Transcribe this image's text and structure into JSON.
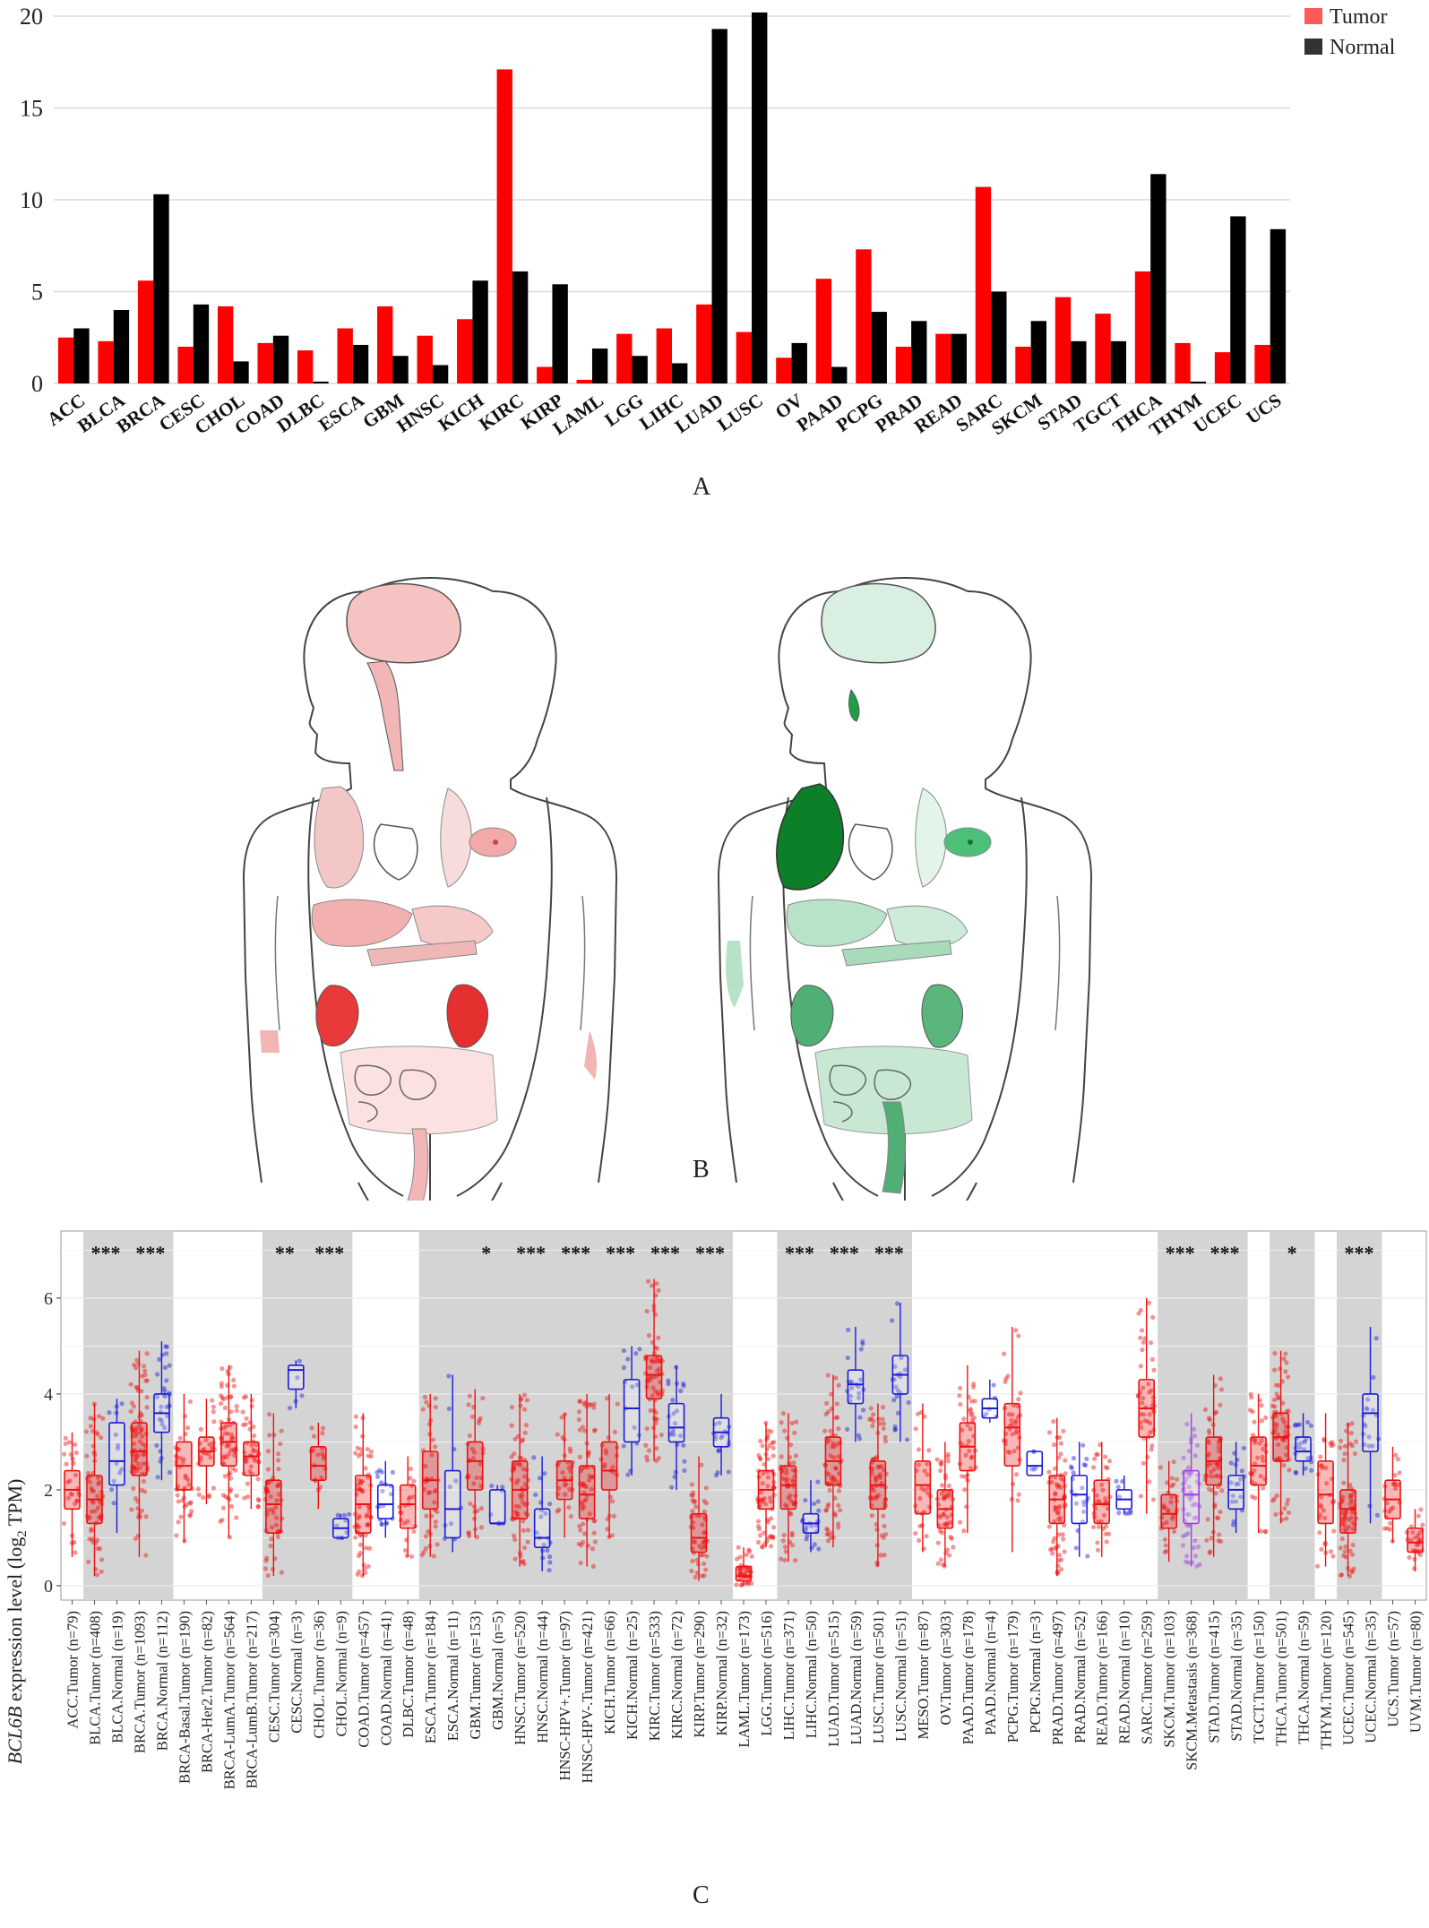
{
  "panel_labels": {
    "a": "A",
    "b": "B",
    "c": "C"
  },
  "colors": {
    "tumor": "#ff0000",
    "normal": "#000000",
    "tumor_box": "#ee1111",
    "normal_box": "#1a1adb",
    "metastasis_box": "#a040e0"
  },
  "chart_data": [
    {
      "type": "bar",
      "legend": {
        "position": "top-right",
        "entries": [
          "Tumor",
          "Normal"
        ]
      },
      "ylim": [
        0,
        20
      ],
      "yticks": [
        "0",
        "5",
        "10",
        "15",
        "20"
      ],
      "grid": true,
      "categories": [
        "ACC",
        "BLCA",
        "BRCA",
        "CESC",
        "CHOL",
        "COAD",
        "DLBC",
        "ESCA",
        "GBM",
        "HNSC",
        "KICH",
        "KIRC",
        "KIRP",
        "LAML",
        "LGG",
        "LIHC",
        "LUAD",
        "LUSC",
        "OV",
        "PAAD",
        "PCPG",
        "PRAD",
        "READ",
        "SARC",
        "SKCM",
        "STAD",
        "TGCT",
        "THCA",
        "THYM",
        "UCEC",
        "UCS"
      ],
      "series": [
        {
          "name": "Tumor",
          "values": [
            2.5,
            2.3,
            5.6,
            2.0,
            4.2,
            2.2,
            1.8,
            3.0,
            4.2,
            2.6,
            3.5,
            17.1,
            0.9,
            0.2,
            2.7,
            3.0,
            4.3,
            2.8,
            1.4,
            5.7,
            7.3,
            2.0,
            2.7,
            10.7,
            2.0,
            4.7,
            3.8,
            6.1,
            2.2,
            1.7,
            2.1
          ]
        },
        {
          "name": "Normal",
          "values": [
            3.0,
            4.0,
            10.3,
            4.3,
            1.2,
            2.6,
            0.1,
            2.1,
            1.5,
            1.0,
            5.6,
            6.1,
            5.4,
            1.9,
            1.5,
            1.1,
            19.3,
            20.2,
            2.2,
            0.9,
            3.9,
            3.4,
            2.7,
            5.0,
            3.4,
            2.3,
            2.3,
            11.4,
            0.1,
            9.1,
            8.4
          ]
        }
      ]
    },
    {
      "type": "box",
      "ylabel_gene": "BCL6B",
      "ylabel_rest": " expression level (log",
      "ylabel_sub": "2",
      "ylabel_end": " TPM)",
      "ylim": [
        -0.3,
        7.4
      ],
      "yticks": [
        "0",
        "2",
        "4",
        "6"
      ],
      "grid": true,
      "groups": [
        {
          "label": "ACC.Tumor (n=79)",
          "kind": "tumor",
          "q": [
            0.6,
            1.6,
            2.0,
            2.4,
            3.2
          ],
          "sig": "",
          "shade": false
        },
        {
          "label": "BLCA.Tumor (n=408)",
          "kind": "tumor",
          "q": [
            0.2,
            1.3,
            1.8,
            2.3,
            3.8
          ],
          "sig": "***",
          "shade": true
        },
        {
          "label": "BLCA.Normal (n=19)",
          "kind": "normal",
          "q": [
            1.1,
            2.1,
            2.6,
            3.4,
            3.9
          ],
          "sig": "",
          "shade": true
        },
        {
          "label": "BRCA.Tumor (n=1093)",
          "kind": "tumor",
          "q": [
            0.6,
            2.3,
            2.8,
            3.4,
            4.9
          ],
          "sig": "***",
          "shade": true
        },
        {
          "label": "BRCA.Normal (n=112)",
          "kind": "normal",
          "q": [
            2.2,
            3.2,
            3.6,
            4.0,
            5.1
          ],
          "sig": "",
          "shade": true
        },
        {
          "label": "BRCA-Basal.Tumor (n=190)",
          "kind": "tumor",
          "q": [
            0.9,
            2.0,
            2.5,
            3.0,
            4.0
          ],
          "sig": "",
          "shade": false
        },
        {
          "label": "BRCA-Her2.Tumor (n=82)",
          "kind": "tumor",
          "q": [
            1.7,
            2.5,
            2.8,
            3.1,
            3.9
          ],
          "sig": "",
          "shade": false
        },
        {
          "label": "BRCA-LumA.Tumor (n=564)",
          "kind": "tumor",
          "q": [
            1.0,
            2.5,
            3.0,
            3.4,
            4.6
          ],
          "sig": "",
          "shade": false
        },
        {
          "label": "BRCA-LumB.Tumor (n=217)",
          "kind": "tumor",
          "q": [
            1.6,
            2.3,
            2.7,
            3.0,
            4.0
          ],
          "sig": "",
          "shade": false
        },
        {
          "label": "CESC.Tumor (n=304)",
          "kind": "tumor",
          "q": [
            0.2,
            1.1,
            1.7,
            2.2,
            3.6
          ],
          "sig": "**",
          "shade": true
        },
        {
          "label": "CESC.Normal (n=3)",
          "kind": "normal",
          "q": [
            3.7,
            4.1,
            4.5,
            4.6,
            4.7
          ],
          "sig": "",
          "shade": true
        },
        {
          "label": "CHOL.Tumor (n=36)",
          "kind": "tumor",
          "q": [
            1.6,
            2.2,
            2.5,
            2.9,
            3.4
          ],
          "sig": "***",
          "shade": true
        },
        {
          "label": "CHOL.Normal (n=9)",
          "kind": "normal",
          "q": [
            1.0,
            1.0,
            1.2,
            1.4,
            1.5
          ],
          "sig": "",
          "shade": true
        },
        {
          "label": "COAD.Tumor (n=457)",
          "kind": "tumor",
          "q": [
            0.2,
            1.1,
            1.7,
            2.3,
            3.6
          ],
          "sig": "",
          "shade": false
        },
        {
          "label": "COAD.Normal (n=41)",
          "kind": "normal",
          "q": [
            1.0,
            1.4,
            1.7,
            2.1,
            2.6
          ],
          "sig": "",
          "shade": false
        },
        {
          "label": "DLBC.Tumor (n=48)",
          "kind": "tumor",
          "q": [
            0.6,
            1.2,
            1.7,
            2.1,
            2.7
          ],
          "sig": "",
          "shade": false
        },
        {
          "label": "ESCA.Tumor (n=184)",
          "kind": "tumor",
          "q": [
            0.6,
            1.6,
            2.2,
            2.8,
            4.0
          ],
          "sig": "",
          "shade": true
        },
        {
          "label": "ESCA.Normal (n=11)",
          "kind": "normal",
          "q": [
            0.7,
            1.0,
            1.6,
            2.4,
            4.4
          ],
          "sig": "",
          "shade": true
        },
        {
          "label": "GBM.Tumor (n=153)",
          "kind": "tumor",
          "q": [
            1.0,
            2.0,
            2.6,
            3.0,
            4.1
          ],
          "sig": "*",
          "shade": true
        },
        {
          "label": "GBM.Normal (n=5)",
          "kind": "normal",
          "q": [
            1.3,
            1.3,
            1.3,
            2.0,
            2.1
          ],
          "sig": "",
          "shade": true
        },
        {
          "label": "HNSC.Tumor (n=520)",
          "kind": "tumor",
          "q": [
            0.4,
            1.4,
            2.0,
            2.6,
            4.0
          ],
          "sig": "***",
          "shade": true
        },
        {
          "label": "HNSC.Normal (n=44)",
          "kind": "normal",
          "q": [
            0.3,
            0.8,
            1.0,
            1.6,
            2.7
          ],
          "sig": "",
          "shade": true
        },
        {
          "label": "HNSC-HPV+.Tumor (n=97)",
          "kind": "tumor",
          "q": [
            1.0,
            1.8,
            2.2,
            2.6,
            3.6
          ],
          "sig": "***",
          "shade": true
        },
        {
          "label": "HNSC-HPV-.Tumor (n=421)",
          "kind": "tumor",
          "q": [
            0.4,
            1.4,
            1.9,
            2.5,
            4.0
          ],
          "sig": "",
          "shade": true
        },
        {
          "label": "KICH.Tumor (n=66)",
          "kind": "tumor",
          "q": [
            1.0,
            2.0,
            2.4,
            3.0,
            4.0
          ],
          "sig": "***",
          "shade": true
        },
        {
          "label": "KICH.Normal (n=25)",
          "kind": "normal",
          "q": [
            2.3,
            3.0,
            3.7,
            4.3,
            5.0
          ],
          "sig": "",
          "shade": true
        },
        {
          "label": "KIRC.Tumor (n=533)",
          "kind": "tumor",
          "q": [
            2.6,
            3.9,
            4.4,
            4.8,
            6.4
          ],
          "sig": "***",
          "shade": true
        },
        {
          "label": "KIRC.Normal (n=72)",
          "kind": "normal",
          "q": [
            2.0,
            3.0,
            3.3,
            3.8,
            4.6
          ],
          "sig": "",
          "shade": true
        },
        {
          "label": "KIRP.Tumor (n=290)",
          "kind": "tumor",
          "q": [
            0.1,
            0.7,
            1.0,
            1.5,
            2.7
          ],
          "sig": "***",
          "shade": true
        },
        {
          "label": "KIRP.Normal (n=32)",
          "kind": "normal",
          "q": [
            2.3,
            2.9,
            3.2,
            3.5,
            4.0
          ],
          "sig": "",
          "shade": true
        },
        {
          "label": "LAML.Tumor (n=173)",
          "kind": "tumor",
          "q": [
            0.0,
            0.1,
            0.2,
            0.4,
            0.8
          ],
          "sig": "",
          "shade": false
        },
        {
          "label": "LGG.Tumor (n=516)",
          "kind": "tumor",
          "q": [
            0.8,
            1.6,
            2.0,
            2.4,
            3.4
          ],
          "sig": "",
          "shade": false
        },
        {
          "label": "LIHC.Tumor (n=371)",
          "kind": "tumor",
          "q": [
            0.5,
            1.6,
            2.1,
            2.5,
            3.6
          ],
          "sig": "***",
          "shade": true
        },
        {
          "label": "LIHC.Normal (n=50)",
          "kind": "normal",
          "q": [
            0.7,
            1.1,
            1.3,
            1.5,
            2.2
          ],
          "sig": "",
          "shade": true
        },
        {
          "label": "LUAD.Tumor (n=515)",
          "kind": "tumor",
          "q": [
            0.8,
            2.1,
            2.6,
            3.1,
            4.4
          ],
          "sig": "***",
          "shade": true
        },
        {
          "label": "LUAD.Normal (n=59)",
          "kind": "normal",
          "q": [
            3.0,
            3.8,
            4.2,
            4.5,
            5.4
          ],
          "sig": "",
          "shade": true
        },
        {
          "label": "LUSC.Tumor (n=501)",
          "kind": "tumor",
          "q": [
            0.4,
            1.6,
            2.1,
            2.6,
            3.8
          ],
          "sig": "***",
          "shade": true
        },
        {
          "label": "LUSC.Normal (n=51)",
          "kind": "normal",
          "q": [
            3.0,
            4.0,
            4.4,
            4.8,
            5.9
          ],
          "sig": "",
          "shade": true
        },
        {
          "label": "MESO.Tumor (n=87)",
          "kind": "tumor",
          "q": [
            0.7,
            1.5,
            2.1,
            2.6,
            3.8
          ],
          "sig": "",
          "shade": false
        },
        {
          "label": "OV.Tumor (n=303)",
          "kind": "tumor",
          "q": [
            0.4,
            1.2,
            1.6,
            2.0,
            3.0
          ],
          "sig": "",
          "shade": false
        },
        {
          "label": "PAAD.Tumor (n=178)",
          "kind": "tumor",
          "q": [
            1.1,
            2.4,
            2.9,
            3.4,
            4.6
          ],
          "sig": "",
          "shade": false
        },
        {
          "label": "PAAD.Normal (n=4)",
          "kind": "normal",
          "q": [
            3.4,
            3.5,
            3.7,
            3.9,
            4.3
          ],
          "sig": "",
          "shade": false
        },
        {
          "label": "PCPG.Tumor (n=179)",
          "kind": "tumor",
          "q": [
            0.7,
            2.5,
            3.3,
            3.8,
            5.4
          ],
          "sig": "",
          "shade": false
        },
        {
          "label": "PCPG.Normal (n=3)",
          "kind": "normal",
          "q": [
            2.3,
            2.3,
            2.5,
            2.8,
            2.8
          ],
          "sig": "",
          "shade": false
        },
        {
          "label": "PRAD.Tumor (n=497)",
          "kind": "tumor",
          "q": [
            0.2,
            1.3,
            1.8,
            2.3,
            3.5
          ],
          "sig": "",
          "shade": false
        },
        {
          "label": "PRAD.Normal (n=52)",
          "kind": "normal",
          "q": [
            0.6,
            1.3,
            1.9,
            2.3,
            3.0
          ],
          "sig": "",
          "shade": false
        },
        {
          "label": "READ.Tumor (n=166)",
          "kind": "tumor",
          "q": [
            0.6,
            1.3,
            1.7,
            2.2,
            3.0
          ],
          "sig": "",
          "shade": false
        },
        {
          "label": "READ.Normal (n=10)",
          "kind": "normal",
          "q": [
            1.5,
            1.6,
            1.8,
            2.0,
            2.3
          ],
          "sig": "",
          "shade": false
        },
        {
          "label": "SARC.Tumor (n=259)",
          "kind": "tumor",
          "q": [
            1.5,
            3.1,
            3.7,
            4.3,
            6.0
          ],
          "sig": "",
          "shade": false
        },
        {
          "label": "SKCM.Tumor (n=103)",
          "kind": "tumor",
          "q": [
            0.5,
            1.2,
            1.5,
            1.9,
            2.6
          ],
          "sig": "***",
          "shade": true
        },
        {
          "label": "SKCM.Metastasis (n=368)",
          "kind": "metastasis",
          "q": [
            0.4,
            1.3,
            1.9,
            2.4,
            3.6
          ],
          "sig": "",
          "shade": true
        },
        {
          "label": "STAD.Tumor (n=415)",
          "kind": "tumor",
          "q": [
            0.6,
            2.1,
            2.6,
            3.1,
            4.4
          ],
          "sig": "***",
          "shade": true
        },
        {
          "label": "STAD.Normal (n=35)",
          "kind": "normal",
          "q": [
            1.1,
            1.6,
            2.0,
            2.3,
            3.0
          ],
          "sig": "",
          "shade": true
        },
        {
          "label": "TGCT.Tumor (n=150)",
          "kind": "tumor",
          "q": [
            1.1,
            2.1,
            2.5,
            3.1,
            4.0
          ],
          "sig": "",
          "shade": false
        },
        {
          "label": "THCA.Tumor (n=501)",
          "kind": "tumor",
          "q": [
            1.3,
            2.6,
            3.1,
            3.6,
            4.9
          ],
          "sig": "*",
          "shade": true
        },
        {
          "label": "THCA.Normal (n=59)",
          "kind": "normal",
          "q": [
            2.3,
            2.6,
            2.8,
            3.1,
            3.6
          ],
          "sig": "",
          "shade": true
        },
        {
          "label": "THYM.Tumor (n=120)",
          "kind": "tumor",
          "q": [
            0.4,
            1.3,
            1.9,
            2.6,
            3.6
          ],
          "sig": "",
          "shade": false
        },
        {
          "label": "UCEC.Tumor (n=545)",
          "kind": "tumor",
          "q": [
            0.2,
            1.1,
            1.6,
            2.0,
            3.4
          ],
          "sig": "***",
          "shade": true
        },
        {
          "label": "UCEC.Normal (n=35)",
          "kind": "normal",
          "q": [
            1.3,
            2.8,
            3.6,
            4.0,
            5.4
          ],
          "sig": "",
          "shade": true
        },
        {
          "label": "UCS.Tumor (n=57)",
          "kind": "tumor",
          "q": [
            0.9,
            1.4,
            1.8,
            2.2,
            2.9
          ],
          "sig": "",
          "shade": false
        },
        {
          "label": "UVM.Tumor (n=80)",
          "kind": "tumor",
          "q": [
            0.3,
            0.7,
            0.9,
            1.2,
            1.6
          ],
          "sig": "",
          "shade": false
        }
      ]
    }
  ]
}
